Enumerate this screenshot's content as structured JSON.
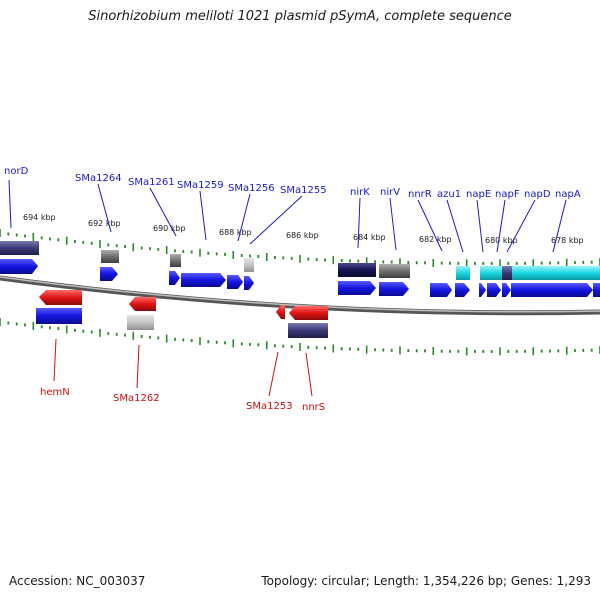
{
  "header": {
    "title": "Sinorhizobium meliloti 1021 plasmid pSymA, complete sequence"
  },
  "footer": {
    "accession": "Accession: NC_003037",
    "summary": "Topology: circular; Length: 1,354,226 bp; Genes: 1,293"
  },
  "colors": {
    "forward_gene": "#1414e0",
    "reverse_gene": "#e01414",
    "forward_label": "#1a1acc",
    "reverse_label": "#cc1111",
    "backbone": "#8a8a8a",
    "tick": "#2a8a2a",
    "cyan_feature": "#1ad6e0",
    "dark_block": "#2a2a6e",
    "gray_block": "#7a7a7a"
  },
  "scale_ticks": [
    "694 kbp",
    "692 kbp",
    "690 kbp",
    "688 kbp",
    "686 kbp",
    "684 kbp",
    "682 kbp",
    "680 kbp",
    "678 kbp"
  ],
  "forward_labels": [
    "norD",
    "SMa1264",
    "SMa1261",
    "SMa1259",
    "SMa1256",
    "SMa1255",
    "nirK",
    "nirV",
    "nnrR",
    "azu1",
    "napE",
    "napF",
    "napD",
    "napA"
  ],
  "reverse_labels": [
    "hemN",
    "SMa1262",
    "SMa1253",
    "nnrS"
  ]
}
